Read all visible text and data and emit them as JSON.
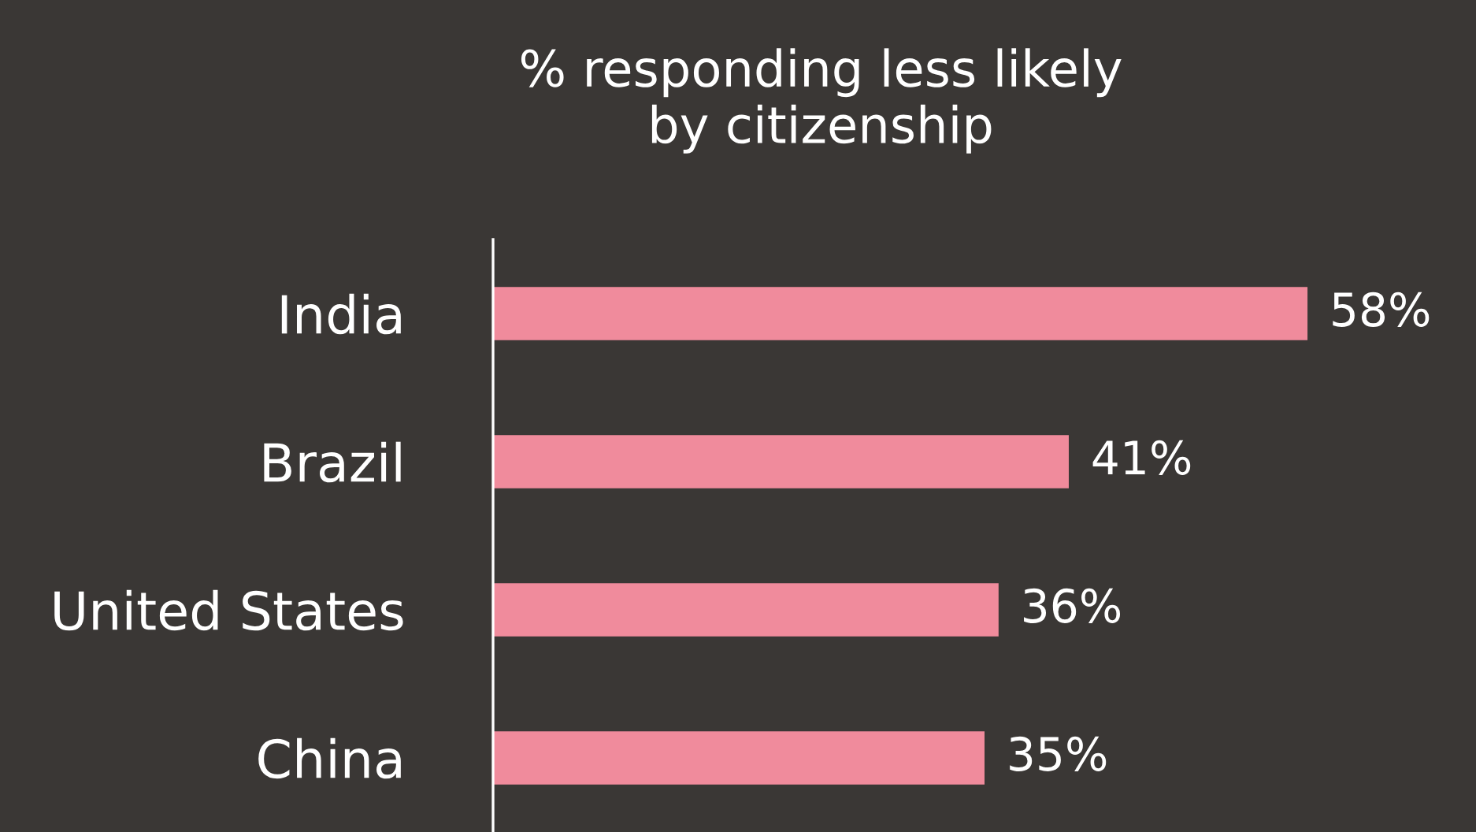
{
  "chart_data": {
    "type": "bar",
    "orientation": "horizontal",
    "title": "% responding less likely\nby citizenship",
    "categories": [
      "India",
      "Brazil",
      "United States",
      "China"
    ],
    "values": [
      58,
      41,
      36,
      35
    ],
    "value_labels": [
      "58%",
      "41%",
      "36%",
      "35%"
    ],
    "color": "#f08b9c",
    "xlim": [
      0,
      70
    ],
    "tick_labels": "y",
    "grid": false,
    "legend": false
  }
}
